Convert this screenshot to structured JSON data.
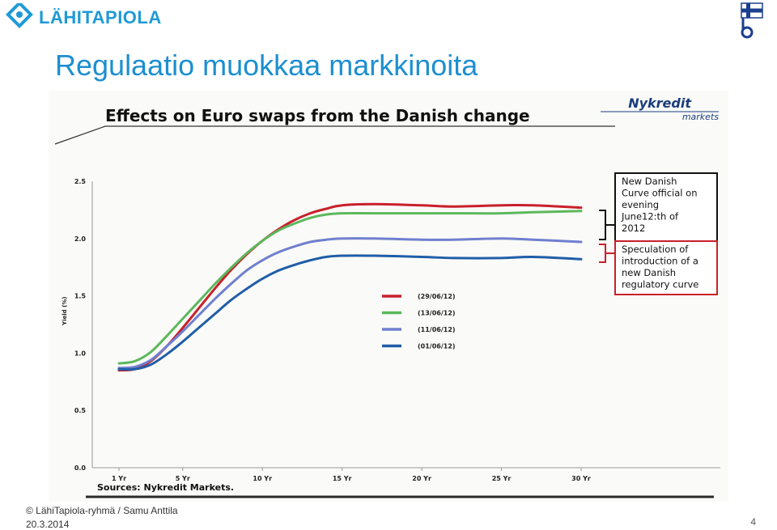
{
  "brand": {
    "name": "LÄHITAPIOLA",
    "logo_color": "#1f9ad6"
  },
  "slide": {
    "title": "Regulaatio muokkaa markkinoita",
    "title_color": "#1c8fd0",
    "footer_copyright": "© LähiTapiola-ryhmä / Samu Anttila",
    "footer_date": "20.3.2014",
    "page_number": "4"
  },
  "chart_data": {
    "type": "line",
    "title": "Effects on Euro swaps from the Danish change",
    "publisher": "Nykredit",
    "publisher_sub": "markets",
    "ylabel": "Yield (%)",
    "xlabel": "",
    "source": "Sources:  Nykredit Markets.",
    "ylim": [
      0,
      2.5
    ],
    "yticks": [
      "0.0",
      "0.5",
      "1.0",
      "1.5",
      "2.0",
      "2.5"
    ],
    "ytick_values": [
      0,
      0.5,
      1.0,
      1.5,
      2.0,
      2.5
    ],
    "xlim": [
      1,
      30
    ],
    "xticks": [
      "1 Yr",
      "5 Yr",
      "10 Yr",
      "15 Yr",
      "20 Yr",
      "25 Yr",
      "30 Yr"
    ],
    "xtick_values": [
      1,
      5,
      10,
      15,
      20,
      25,
      30
    ],
    "grid": false,
    "legend_position": "center-right",
    "x": [
      1,
      2,
      3,
      4,
      5,
      6,
      7,
      8,
      9,
      10,
      11,
      12,
      13,
      14,
      15,
      17,
      20,
      22,
      25,
      27,
      30
    ],
    "series": [
      {
        "name": "(29/06/12)",
        "color": "#c8202a",
        "values": [
          0.85,
          0.86,
          0.93,
          1.06,
          1.22,
          1.39,
          1.56,
          1.72,
          1.86,
          1.98,
          2.08,
          2.16,
          2.22,
          2.26,
          2.29,
          2.3,
          2.29,
          2.28,
          2.29,
          2.29,
          2.27
        ]
      },
      {
        "name": "(13/06/12)",
        "color": "#5cb85c",
        "values": [
          0.91,
          0.93,
          1.01,
          1.15,
          1.3,
          1.45,
          1.6,
          1.74,
          1.87,
          1.98,
          2.07,
          2.13,
          2.18,
          2.21,
          2.22,
          2.22,
          2.22,
          2.22,
          2.22,
          2.23,
          2.24
        ]
      },
      {
        "name": "(11/06/12)",
        "color": "#6f7fcf",
        "values": [
          0.87,
          0.88,
          0.94,
          1.06,
          1.19,
          1.33,
          1.47,
          1.6,
          1.72,
          1.81,
          1.88,
          1.93,
          1.97,
          1.99,
          2.0,
          2.0,
          1.99,
          1.99,
          2.0,
          1.99,
          1.97
        ]
      },
      {
        "name": "(01/06/12)",
        "color": "#1f5ea8",
        "values": [
          0.86,
          0.86,
          0.9,
          0.99,
          1.1,
          1.22,
          1.34,
          1.46,
          1.56,
          1.65,
          1.72,
          1.77,
          1.81,
          1.84,
          1.85,
          1.85,
          1.84,
          1.83,
          1.83,
          1.84,
          1.82
        ]
      }
    ],
    "annotations": [
      {
        "label": "New Danish Curve official on evening June12:th of 2012",
        "lines": [
          "New Danish",
          "Curve official on",
          "evening",
          "June12:th of",
          "2012"
        ]
      },
      {
        "label": "Speculation of introduction of a new Danish regulatory curve",
        "lines": [
          "Speculation of",
          "introduction of a",
          "new Danish",
          "regulatory curve"
        ]
      }
    ]
  }
}
